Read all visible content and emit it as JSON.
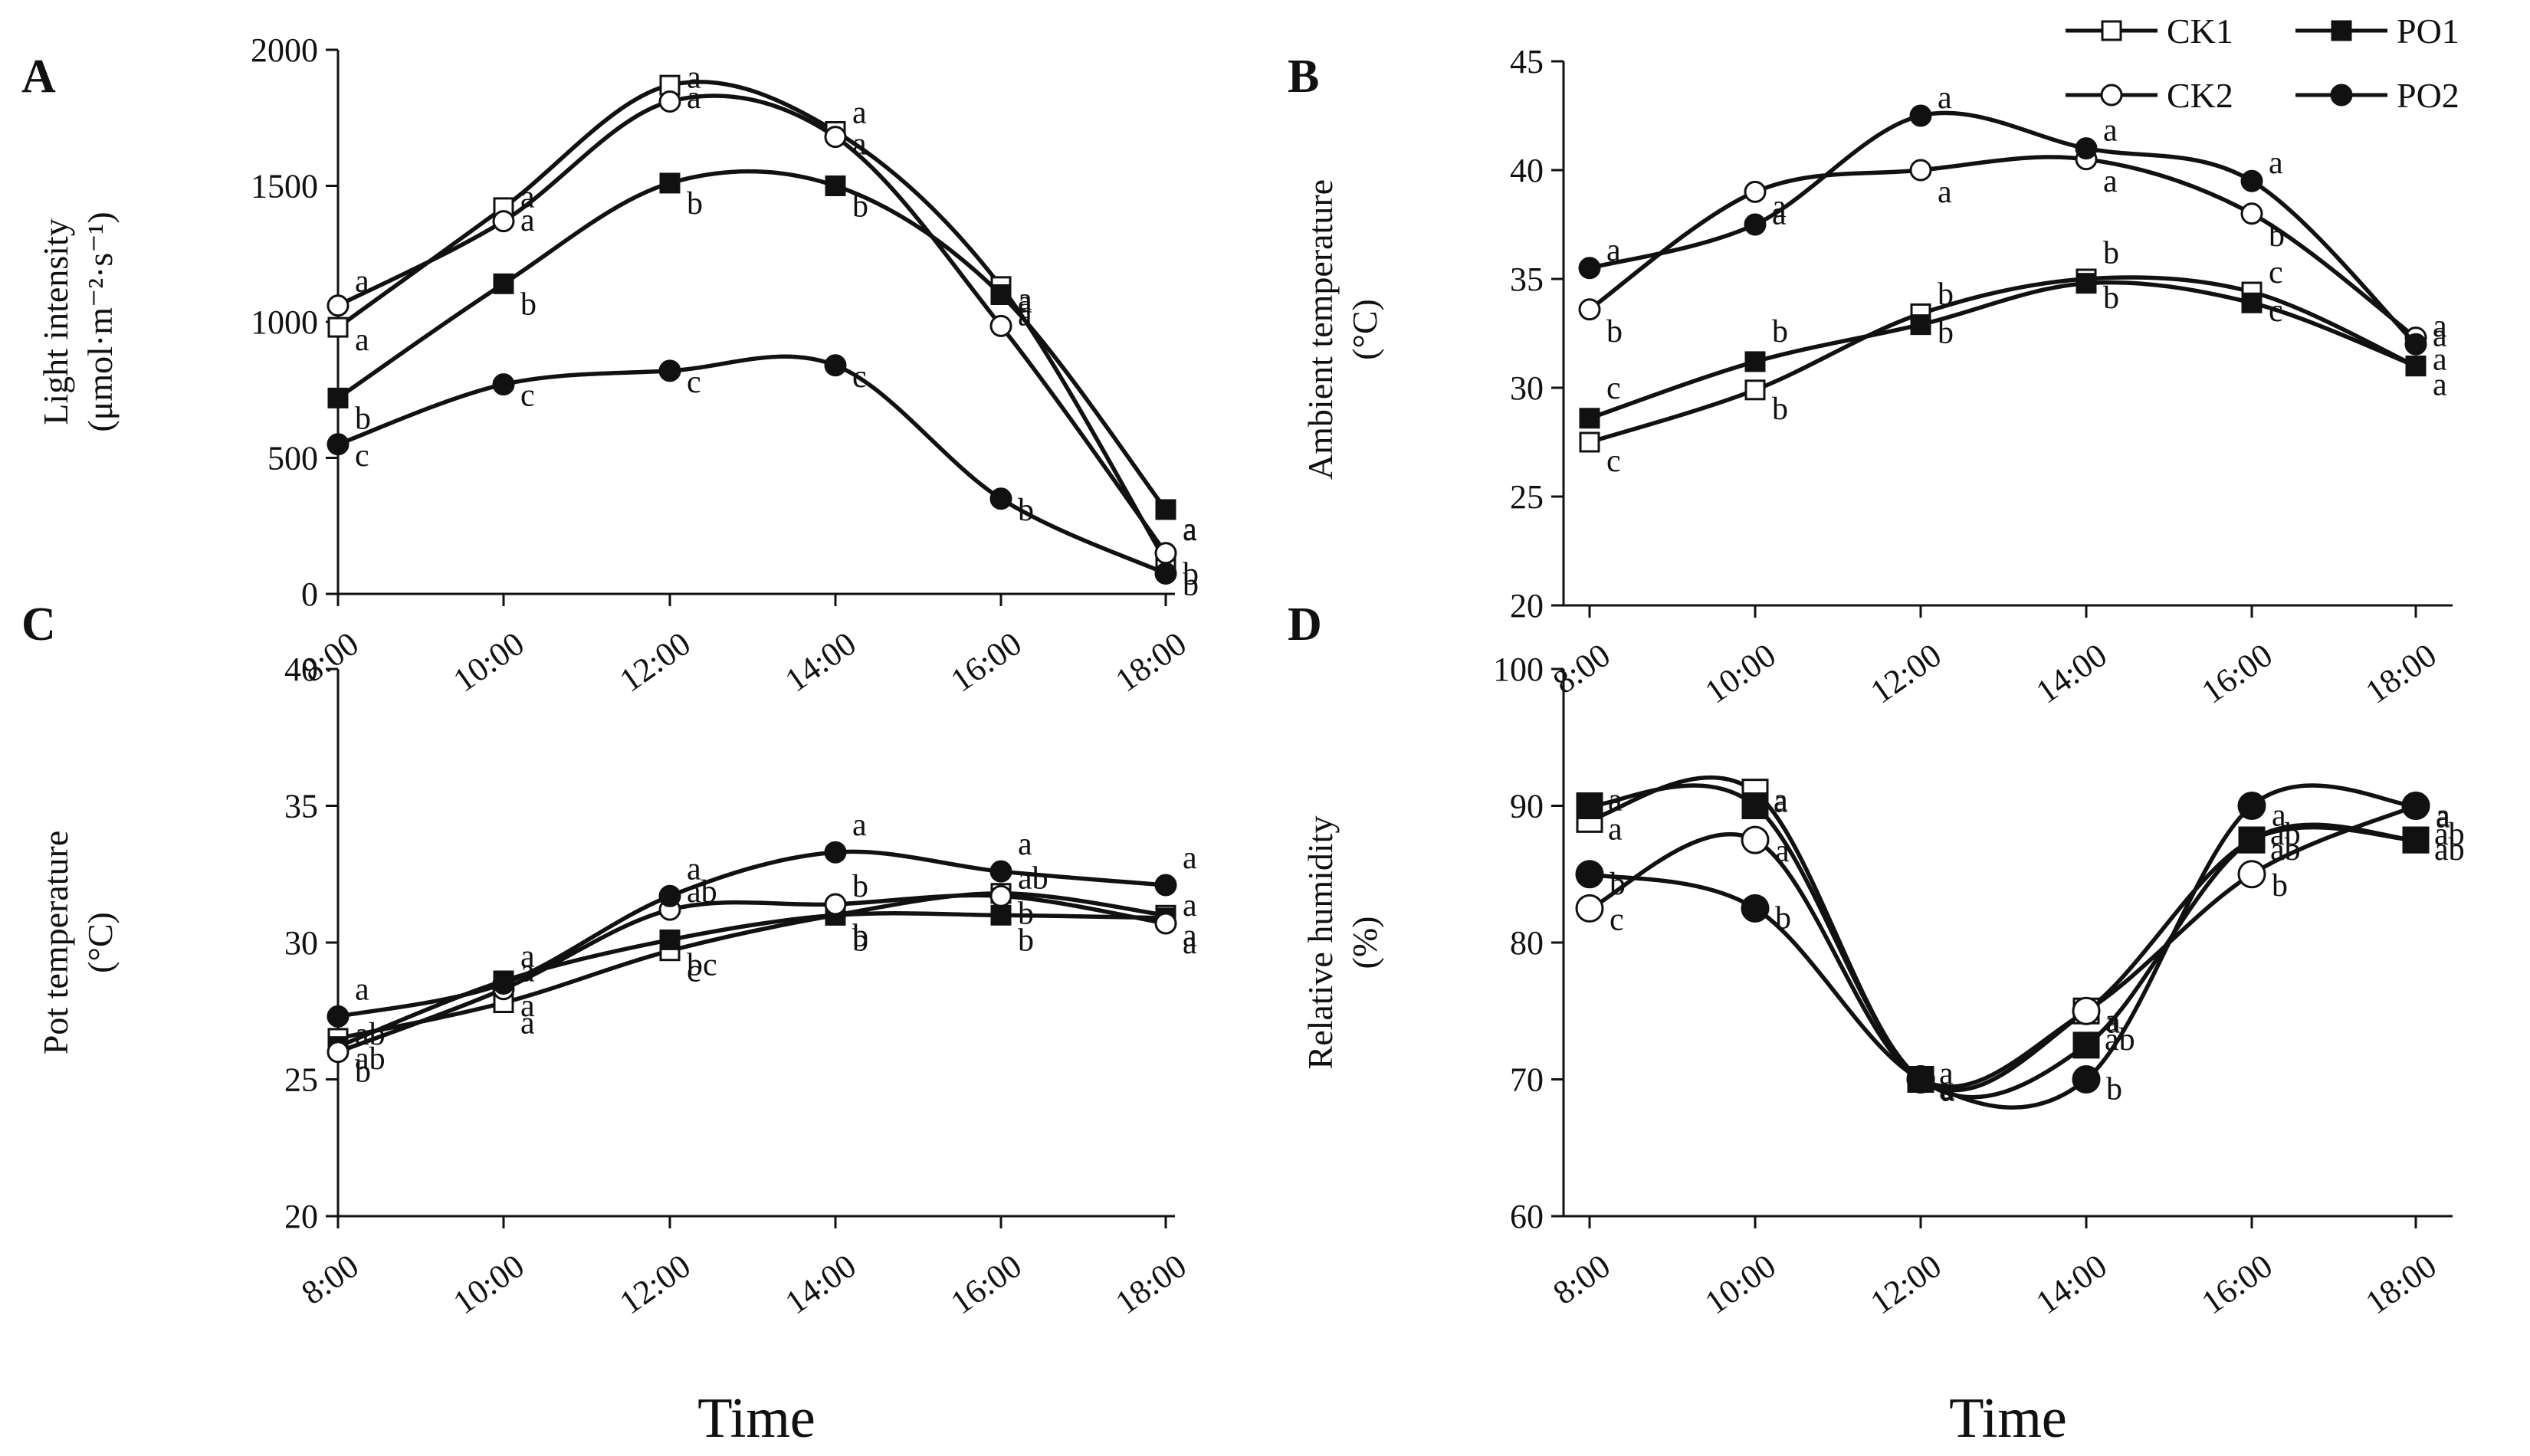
{
  "figure": {
    "x_title": "Time",
    "legend": [
      {
        "name": "CK1",
        "marker": "square",
        "filled": false
      },
      {
        "name": "PO1",
        "marker": "square",
        "filled": true
      },
      {
        "name": "CK2",
        "marker": "circle",
        "filled": false
      },
      {
        "name": "PO2",
        "marker": "circle",
        "filled": true
      }
    ],
    "colors": {
      "ink": "#111111",
      "background": "#ffffff"
    }
  },
  "chart_data": [
    {
      "panel": "A",
      "type": "line",
      "ylabel": [
        "Light intensity",
        "(μmol·m⁻²·s⁻¹)"
      ],
      "xlabel": "Time",
      "categories": [
        "8:00",
        "10:00",
        "12:00",
        "14:00",
        "16:00",
        "18:00"
      ],
      "ylim": [
        0,
        2000
      ],
      "yticks": [
        0,
        500,
        1000,
        1500,
        2000
      ],
      "series": [
        {
          "name": "CK1",
          "values": [
            980,
            1420,
            1870,
            1700,
            1130,
            120
          ],
          "letters": [
            "a",
            "a",
            "a",
            "a",
            "a",
            "b"
          ]
        },
        {
          "name": "PO1",
          "values": [
            720,
            1140,
            1510,
            1500,
            1100,
            310
          ],
          "letters": [
            "b",
            "b",
            "b",
            "b",
            "a",
            "a"
          ]
        },
        {
          "name": "CK2",
          "values": [
            1060,
            1370,
            1810,
            1680,
            985,
            150
          ],
          "letters": [
            "a",
            "a",
            "a",
            "a",
            "a",
            "a"
          ]
        },
        {
          "name": "PO2",
          "values": [
            550,
            770,
            820,
            840,
            350,
            75
          ],
          "letters": [
            "c",
            "c",
            "c",
            "c",
            "b",
            "b"
          ]
        }
      ]
    },
    {
      "panel": "B",
      "type": "line",
      "ylabel": [
        "Ambient temperature",
        "(°C)"
      ],
      "xlabel": "Time",
      "categories": [
        "8:00",
        "10:00",
        "12:00",
        "14:00",
        "16:00",
        "18:00"
      ],
      "ylim": [
        20,
        45
      ],
      "yticks": [
        20,
        25,
        30,
        35,
        40,
        45
      ],
      "series": [
        {
          "name": "CK1",
          "values": [
            27.5,
            29.9,
            33.4,
            35.0,
            34.4,
            31.0
          ],
          "letters": [
            "c",
            "b",
            "b",
            "b",
            "c",
            "a"
          ]
        },
        {
          "name": "PO1",
          "values": [
            28.6,
            31.2,
            32.9,
            34.8,
            33.9,
            31.0
          ],
          "letters": [
            "c",
            "b",
            "b",
            "b",
            "c",
            "a"
          ]
        },
        {
          "name": "CK2",
          "values": [
            33.6,
            39.0,
            40.0,
            40.5,
            38.0,
            32.3
          ],
          "letters": [
            "b",
            "a",
            "a",
            "a",
            "b",
            "a"
          ]
        },
        {
          "name": "PO2",
          "values": [
            35.5,
            37.5,
            42.5,
            41.0,
            39.5,
            32.0
          ],
          "letters": [
            "a",
            "a",
            "a",
            "a",
            "a",
            "a"
          ]
        }
      ]
    },
    {
      "panel": "C",
      "type": "line",
      "ylabel": [
        "Pot temperature",
        "(°C)"
      ],
      "xlabel": "Time",
      "categories": [
        "8:00",
        "10:00",
        "12:00",
        "14:00",
        "16:00",
        "18:00"
      ],
      "ylim": [
        20,
        40
      ],
      "yticks": [
        20,
        25,
        30,
        35,
        40
      ],
      "series": [
        {
          "name": "CK1",
          "values": [
            26.5,
            27.8,
            29.7,
            31.0,
            31.8,
            31.0
          ],
          "letters": [
            "ab",
            "a",
            "c",
            "b",
            "b",
            "a"
          ]
        },
        {
          "name": "PO1",
          "values": [
            26.2,
            28.6,
            30.1,
            31.0,
            31.0,
            30.9
          ],
          "letters": [
            "b",
            "a",
            "bc",
            "b",
            "b",
            "a"
          ]
        },
        {
          "name": "CK2",
          "values": [
            26.0,
            28.3,
            31.2,
            31.4,
            31.7,
            30.7
          ],
          "letters": [
            "ab",
            "a",
            "ab",
            "b",
            "ab",
            "a"
          ]
        },
        {
          "name": "PO2",
          "values": [
            27.3,
            28.5,
            31.7,
            33.3,
            32.6,
            32.1
          ],
          "letters": [
            "a",
            "a",
            "a",
            "a",
            "a",
            "a"
          ]
        }
      ]
    },
    {
      "panel": "D",
      "type": "line",
      "ylabel": [
        "Relative humidity",
        "(%)"
      ],
      "xlabel": "Time",
      "categories": [
        "8:00",
        "10:00",
        "12:00",
        "14:00",
        "16:00",
        "18:00"
      ],
      "ylim": [
        60,
        100
      ],
      "yticks": [
        60,
        70,
        80,
        90,
        100
      ],
      "series": [
        {
          "name": "CK1",
          "values": [
            89.0,
            91.0,
            70.0,
            75.0,
            87.5,
            87.5
          ],
          "letters": [
            "a",
            "a",
            "a",
            "a",
            "ab",
            "ab"
          ]
        },
        {
          "name": "PO1",
          "values": [
            90.0,
            90.0,
            70.0,
            72.5,
            87.5,
            87.5
          ],
          "letters": [
            "a",
            "a",
            "a",
            "ab",
            "ab",
            "ab"
          ]
        },
        {
          "name": "CK2",
          "values": [
            82.5,
            87.5,
            70.0,
            75.0,
            85.0,
            90.0
          ],
          "letters": [
            "c",
            "a",
            "a",
            "a",
            "b",
            "a"
          ]
        },
        {
          "name": "PO2",
          "values": [
            85.0,
            82.5,
            70.0,
            70.0,
            90.0,
            90.0
          ],
          "letters": [
            "b",
            "b",
            "a",
            "b",
            "a",
            "a"
          ]
        }
      ]
    }
  ]
}
